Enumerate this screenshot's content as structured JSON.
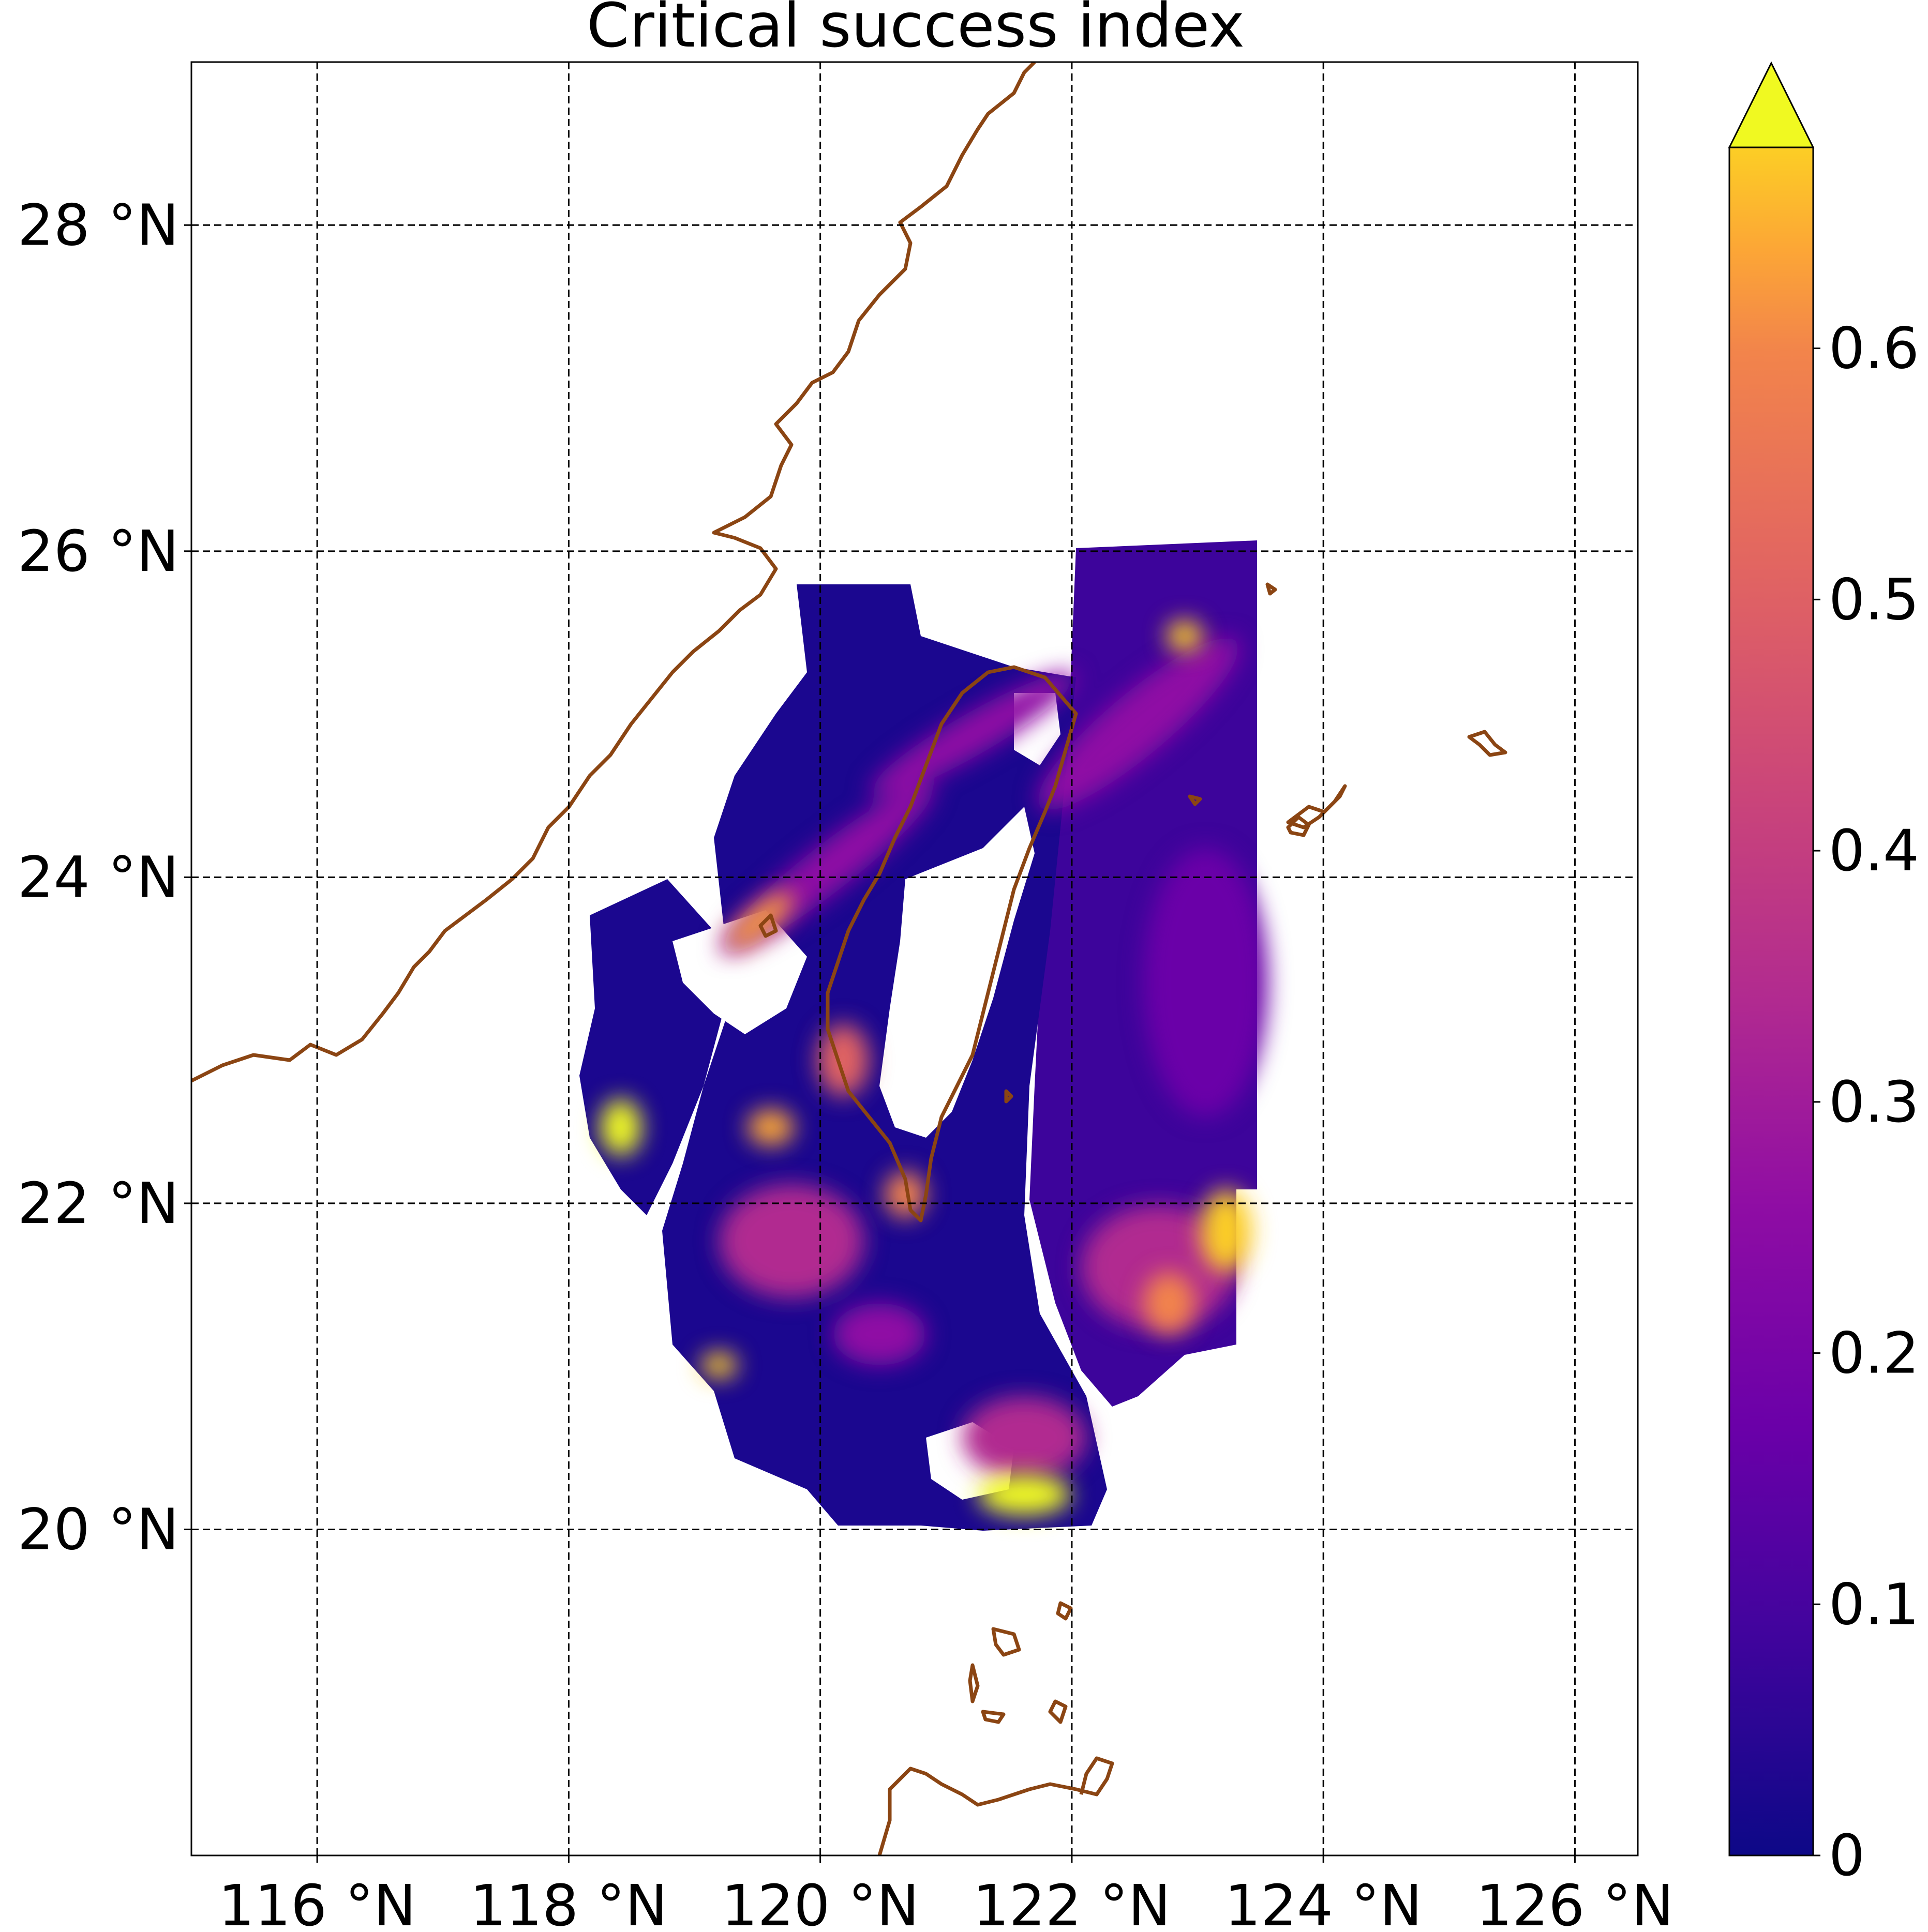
{
  "title": "Critical success index",
  "map": {
    "lon_range": [
      115,
      126.5
    ],
    "lat_range": [
      18,
      29
    ],
    "x_ticks": [
      {
        "value": 116,
        "label": "116 °N"
      },
      {
        "value": 118,
        "label": "118 °N"
      },
      {
        "value": 120,
        "label": "120 °N"
      },
      {
        "value": 122,
        "label": "122 °N"
      },
      {
        "value": 124,
        "label": "124 °N"
      },
      {
        "value": 126,
        "label": "126 °N"
      }
    ],
    "y_ticks": [
      {
        "value": 28,
        "label": "28 °N"
      },
      {
        "value": 26,
        "label": "26 °N"
      },
      {
        "value": 24,
        "label": "24 °N"
      },
      {
        "value": 22,
        "label": "22 °N"
      },
      {
        "value": 20,
        "label": "20 °N"
      }
    ],
    "grid": "dashed",
    "coastline_color": "#8b4513",
    "colormap": "plasma"
  },
  "colorbar": {
    "min": 0,
    "max": 0.68,
    "extend": "max",
    "ticks": [
      {
        "value": 0,
        "label": "0"
      },
      {
        "value": 0.1,
        "label": "0.1"
      },
      {
        "value": 0.2,
        "label": "0.2"
      },
      {
        "value": 0.3,
        "label": "0.3"
      },
      {
        "value": 0.4,
        "label": "0.4"
      },
      {
        "value": 0.5,
        "label": "0.5"
      },
      {
        "value": 0.6,
        "label": "0.6"
      }
    ]
  },
  "chart_data": {
    "type": "heatmap",
    "title": "Critical success index",
    "xlim": [
      115,
      126.5
    ],
    "ylim": [
      18,
      29
    ],
    "colorbar_range": [
      0,
      0.68
    ],
    "extend": "max",
    "hotspots": [
      {
        "lon": 121.6,
        "lat": 20.2,
        "value": 0.68
      },
      {
        "lon": 118.4,
        "lat": 22.4,
        "value": 0.68
      },
      {
        "lon": 123.2,
        "lat": 21.8,
        "value": 0.65
      },
      {
        "lon": 119.7,
        "lat": 23.6,
        "value": 0.55
      },
      {
        "lon": 122.9,
        "lat": 25.4,
        "value": 0.6
      },
      {
        "lon": 119.1,
        "lat": 21.1,
        "value": 0.6
      },
      {
        "lon": 120.3,
        "lat": 22.8,
        "value": 0.45
      },
      {
        "lon": 122.7,
        "lat": 21.4,
        "value": 0.5
      },
      {
        "lon": 119.4,
        "lat": 22.3,
        "value": 0.5
      },
      {
        "lon": 120.7,
        "lat": 21.9,
        "value": 0.5
      }
    ]
  }
}
